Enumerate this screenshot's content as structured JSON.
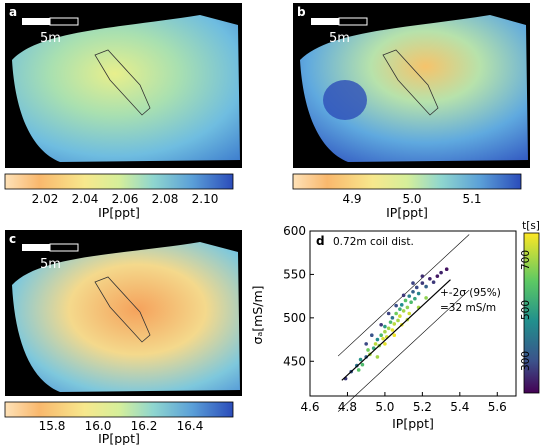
{
  "panels": [
    {
      "letter": "a",
      "scale_label": "5m",
      "cb_ticks": [
        "2.02",
        "2.04",
        "2.06",
        "2.08",
        "2.10"
      ],
      "cb_label": "IP[ppt]",
      "colormap": "RdYlBu"
    },
    {
      "letter": "b",
      "scale_label": "5m",
      "cb_ticks": [
        "4.9",
        "5.0",
        "5.1"
      ],
      "cb_label": "IP[ppt]",
      "colormap": "RdYlBu"
    },
    {
      "letter": "c",
      "scale_label": "5m",
      "cb_ticks": [
        "15.8",
        "16.0",
        "16.2",
        "16.4"
      ],
      "cb_label": "IP[ppt]",
      "colormap": "RdYlBu"
    }
  ],
  "scatter": {
    "letter": "d",
    "title": "0.72m coil dist.",
    "annotation_1": "+-2σ (95%)",
    "annotation_2": "=32 mS/m",
    "colorbar_label": "t[s]",
    "colorbar_ticks": [
      "700",
      "500",
      "300"
    ],
    "colormap": "viridis"
  },
  "chart_data": {
    "type": "scatter",
    "xlabel": "IP[ppt]",
    "ylabel": "σₐ[mS/m]",
    "xlim": [
      4.6,
      5.7
    ],
    "ylim": [
      410,
      600
    ],
    "x_ticks": [
      "4.6",
      "4.8",
      "5.0",
      "5.2",
      "5.4",
      "5.6"
    ],
    "y_ticks": [
      "450",
      "500",
      "550",
      "600"
    ],
    "fit_line": {
      "x": [
        4.77,
        5.35
      ],
      "y": [
        428,
        544
      ]
    },
    "band_offset": 32,
    "color_range": [
      200,
      780
    ],
    "points": [
      [
        4.79,
        430,
        300
      ],
      [
        4.82,
        438,
        350
      ],
      [
        4.85,
        445,
        420
      ],
      [
        4.87,
        452,
        500
      ],
      [
        4.88,
        446,
        600
      ],
      [
        4.9,
        455,
        380
      ],
      [
        4.91,
        463,
        650
      ],
      [
        4.92,
        458,
        700
      ],
      [
        4.94,
        465,
        550
      ],
      [
        4.95,
        470,
        720
      ],
      [
        4.96,
        475,
        480
      ],
      [
        4.97,
        468,
        680
      ],
      [
        4.98,
        480,
        600
      ],
      [
        4.99,
        476,
        750
      ],
      [
        5.0,
        484,
        700
      ],
      [
        5.0,
        490,
        520
      ],
      [
        5.01,
        478,
        740
      ],
      [
        5.02,
        488,
        690
      ],
      [
        5.03,
        495,
        600
      ],
      [
        5.04,
        486,
        760
      ],
      [
        5.04,
        500,
        420
      ],
      [
        5.05,
        493,
        720
      ],
      [
        5.06,
        505,
        650
      ],
      [
        5.07,
        497,
        700
      ],
      [
        5.08,
        510,
        560
      ],
      [
        5.08,
        502,
        740
      ],
      [
        5.09,
        515,
        480
      ],
      [
        5.1,
        508,
        700
      ],
      [
        5.11,
        520,
        620
      ],
      [
        5.12,
        512,
        680
      ],
      [
        5.13,
        525,
        450
      ],
      [
        5.14,
        518,
        600
      ],
      [
        5.15,
        530,
        380
      ],
      [
        5.16,
        522,
        540
      ],
      [
        5.17,
        535,
        330
      ],
      [
        5.18,
        528,
        460
      ],
      [
        5.2,
        540,
        300
      ],
      [
        5.22,
        536,
        380
      ],
      [
        5.24,
        545,
        260
      ],
      [
        5.26,
        541,
        300
      ],
      [
        5.28,
        548,
        240
      ],
      [
        5.3,
        552,
        260
      ],
      [
        5.33,
        556,
        230
      ],
      [
        4.93,
        480,
        350
      ],
      [
        4.98,
        492,
        300
      ],
      [
        5.02,
        505,
        320
      ],
      [
        5.06,
        514,
        340
      ],
      [
        5.1,
        526,
        300
      ],
      [
        5.0,
        470,
        760
      ],
      [
        5.05,
        480,
        770
      ],
      [
        5.09,
        492,
        760
      ],
      [
        5.13,
        505,
        740
      ],
      [
        4.86,
        440,
        620
      ],
      [
        4.96,
        455,
        700
      ],
      [
        5.12,
        498,
        720
      ],
      [
        5.18,
        512,
        700
      ],
      [
        5.22,
        523,
        680
      ],
      [
        4.9,
        470,
        330
      ],
      [
        5.15,
        540,
        320
      ],
      [
        5.2,
        548,
        280
      ]
    ]
  }
}
